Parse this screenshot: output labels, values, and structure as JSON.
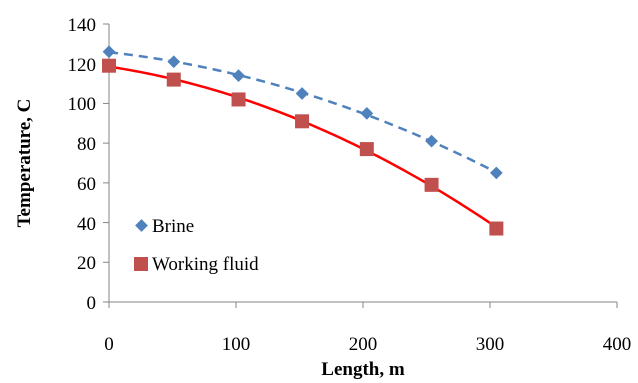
{
  "chart_data": {
    "type": "scatter",
    "xlabel": "Length, m",
    "ylabel": "Temperature, C",
    "xlim": [
      0,
      400
    ],
    "ylim": [
      0,
      140
    ],
    "xticks": [
      0,
      100,
      200,
      300,
      400
    ],
    "yticks": [
      0,
      20,
      40,
      60,
      80,
      100,
      120,
      140
    ],
    "xtick_labels": [
      "0",
      "100",
      "200",
      "300",
      "400"
    ],
    "ytick_labels": [
      "0",
      "20",
      "40",
      "60",
      "80",
      "100",
      "120",
      "140"
    ],
    "grid": false,
    "legend_position": "bottom-left",
    "series": [
      {
        "name": "Brine",
        "marker": "diamond",
        "trendline": "dashed",
        "color": "#4F81BD",
        "x": [
          0,
          51,
          102,
          152,
          203,
          254,
          305
        ],
        "y": [
          126,
          121,
          114,
          105,
          95,
          81,
          65
        ]
      },
      {
        "name": "Working fluid",
        "marker": "square",
        "trendline": "solid",
        "color": "#C0504D",
        "line_color": "#FF0000",
        "x": [
          0,
          51,
          102,
          152,
          203,
          254,
          305
        ],
        "y": [
          119,
          112,
          102,
          91,
          77,
          59,
          37
        ]
      }
    ]
  }
}
